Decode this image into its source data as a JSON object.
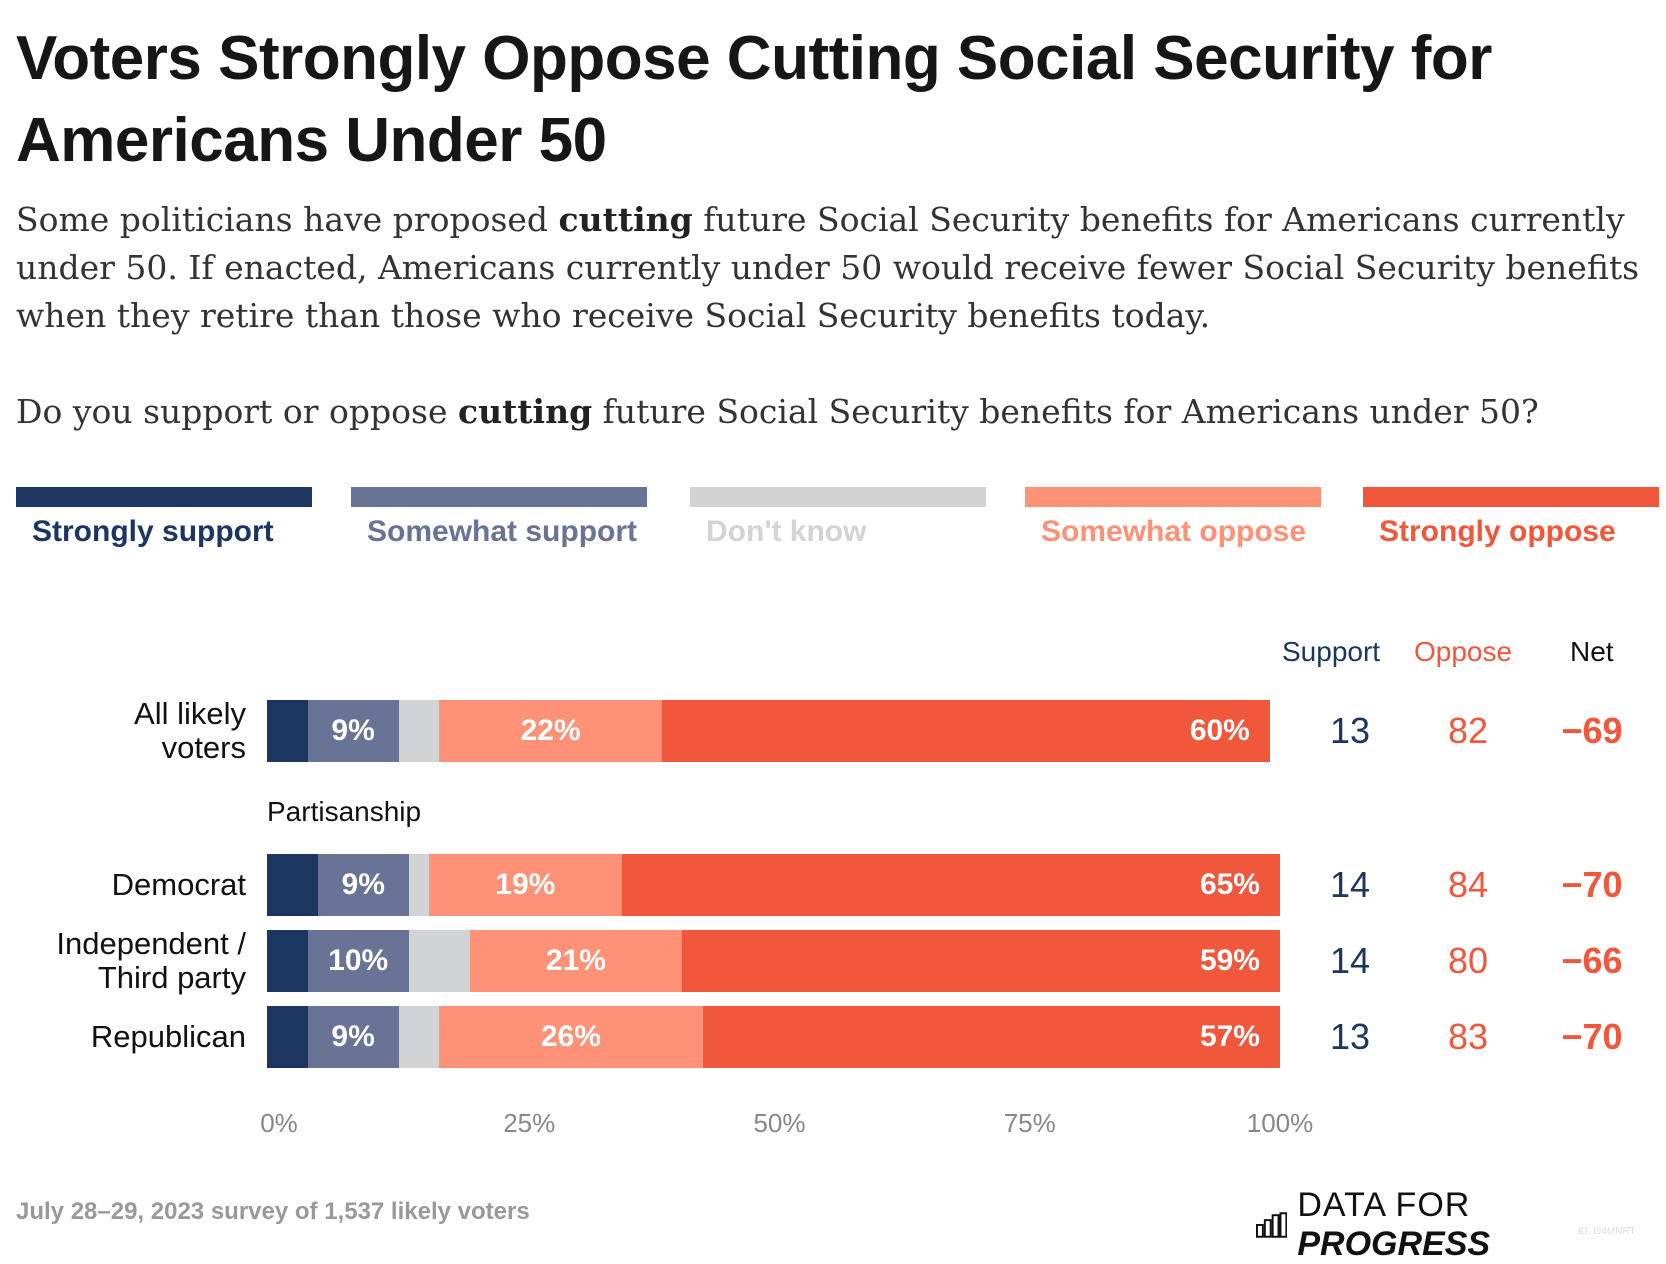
{
  "title": "Voters Strongly Oppose Cutting Social Security for Americans Under 50",
  "subtitle": {
    "before": "Some politicians have proposed ",
    "keyword": "cutting",
    "after": " future Social Security benefits for Americans currently under 50. If enacted, Americans currently under 50 would receive fewer Social Security benefits when they retire than those who receive Social Security benefits today."
  },
  "question": {
    "before": "Do you support or oppose ",
    "keyword": "cutting",
    "after": " future Social Security benefits for Americans under 50?"
  },
  "columns": {
    "support": "Support",
    "oppose": "Oppose",
    "net": "Net"
  },
  "group_label": "Partisanship",
  "footer": "July 28–29, 2023 survey of 1,537 likely voters",
  "logo": {
    "text_light": "DATA FOR ",
    "text_bold": "PROGRESS",
    "id": "ID: G4MNRT"
  },
  "chart_data": {
    "type": "bar",
    "orientation": "horizontal",
    "stacked": true,
    "xlim": [
      0,
      100
    ],
    "x_ticks": [
      "0%",
      "25%",
      "50%",
      "75%",
      "100%"
    ],
    "legend_position": "top",
    "categories": [
      "All likely voters",
      "Democrat",
      "Independent / Third party",
      "Republican"
    ],
    "series": [
      {
        "name": "Strongly support",
        "color": "#1d3661",
        "values": [
          4,
          5,
          4,
          4
        ],
        "labels": [
          "",
          "",
          "",
          ""
        ]
      },
      {
        "name": "Somewhat support",
        "color": "#687395",
        "values": [
          9,
          9,
          10,
          9
        ],
        "labels": [
          "9%",
          "9%",
          "10%",
          "9%"
        ]
      },
      {
        "name": "Don't know",
        "color": "#d2d3d5",
        "values": [
          4,
          2,
          6,
          4
        ],
        "labels": [
          "",
          "",
          "",
          ""
        ]
      },
      {
        "name": "Somewhat oppose",
        "color": "#fe9176",
        "values": [
          22,
          19,
          21,
          26
        ],
        "labels": [
          "22%",
          "19%",
          "21%",
          "26%"
        ]
      },
      {
        "name": "Strongly oppose",
        "color": "#f0573b",
        "values": [
          60,
          65,
          59,
          57
        ],
        "labels": [
          "60%",
          "65%",
          "59%",
          "57%"
        ]
      }
    ],
    "summary": {
      "support": [
        13,
        14,
        14,
        13
      ],
      "oppose": [
        82,
        84,
        80,
        83
      ],
      "net": [
        "−69",
        "−70",
        "−66",
        "−70"
      ]
    }
  }
}
